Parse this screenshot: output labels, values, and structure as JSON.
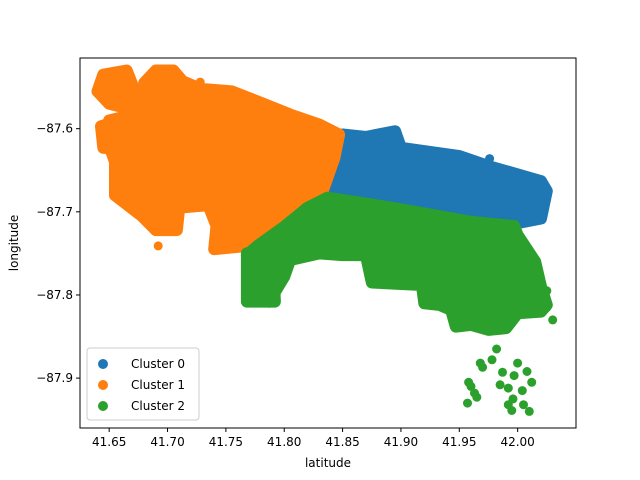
{
  "chart_data": {
    "type": "scatter",
    "title": "",
    "xlabel": "latitude",
    "ylabel": "longitude",
    "xlim": [
      41.625,
      42.05
    ],
    "ylim": [
      -87.96,
      -87.515
    ],
    "xticks": [
      41.65,
      41.7,
      41.75,
      41.8,
      41.85,
      41.9,
      41.95,
      42.0
    ],
    "xtick_labels": [
      "41.65",
      "41.70",
      "41.75",
      "41.80",
      "41.85",
      "41.90",
      "41.95",
      "42.00"
    ],
    "yticks": [
      -87.6,
      -87.7,
      -87.8,
      -87.9
    ],
    "ytick_labels": [
      "−87.6",
      "−87.7",
      "−87.8",
      "−87.9"
    ],
    "legend_position": "lower-left",
    "grid": false,
    "series": [
      {
        "name": "Cluster 0",
        "color": "#1f77b4",
        "regions": [
          {
            "polygon": [
              [
                41.85,
                -87.607
              ],
              [
                41.87,
                -87.61
              ],
              [
                41.895,
                -87.603
              ],
              [
                41.9,
                -87.623
              ],
              [
                41.95,
                -87.633
              ],
              [
                41.975,
                -87.645
              ],
              [
                42.0,
                -87.655
              ],
              [
                42.02,
                -87.663
              ],
              [
                42.025,
                -87.675
              ],
              [
                42.02,
                -87.708
              ],
              [
                41.995,
                -87.715
              ],
              [
                41.96,
                -87.712
              ],
              [
                41.93,
                -87.705
              ],
              [
                41.9,
                -87.697
              ],
              [
                41.87,
                -87.69
              ],
              [
                41.84,
                -87.683
              ],
              [
                41.843,
                -87.66
              ]
            ]
          }
        ],
        "points": [
          [
            41.896,
            -87.603
          ],
          [
            41.976,
            -87.636
          ],
          [
            42.02,
            -87.705
          ],
          [
            41.845,
            -87.65
          ]
        ]
      },
      {
        "name": "Cluster 1",
        "color": "#ff7f0e",
        "regions": [
          {
            "polygon": [
              [
                41.69,
                -87.53
              ],
              [
                41.705,
                -87.53
              ],
              [
                41.713,
                -87.543
              ],
              [
                41.728,
                -87.552
              ],
              [
                41.755,
                -87.555
              ],
              [
                41.782,
                -87.57
              ],
              [
                41.805,
                -87.583
              ],
              [
                41.83,
                -87.595
              ],
              [
                41.847,
                -87.607
              ],
              [
                41.843,
                -87.635
              ],
              [
                41.833,
                -87.675
              ],
              [
                41.812,
                -87.705
              ],
              [
                41.775,
                -87.74
              ],
              [
                41.74,
                -87.745
              ],
              [
                41.742,
                -87.717
              ],
              [
                41.735,
                -87.692
              ],
              [
                41.71,
                -87.695
              ],
              [
                41.708,
                -87.722
              ],
              [
                41.69,
                -87.722
              ],
              [
                41.678,
                -87.705
              ],
              [
                41.655,
                -87.68
              ],
              [
                41.655,
                -87.64
              ],
              [
                41.648,
                -87.612
              ],
              [
                41.65,
                -87.59
              ],
              [
                41.68,
                -87.58
              ],
              [
                41.68,
                -87.545
              ]
            ]
          },
          {
            "polygon": [
              [
                41.645,
                -87.535
              ],
              [
                41.665,
                -87.53
              ],
              [
                41.672,
                -87.555
              ],
              [
                41.67,
                -87.577
              ],
              [
                41.65,
                -87.57
              ],
              [
                41.64,
                -87.555
              ]
            ]
          },
          {
            "polygon": [
              [
                41.643,
                -87.597
              ],
              [
                41.66,
                -87.59
              ],
              [
                41.662,
                -87.625
              ],
              [
                41.645,
                -87.623
              ]
            ]
          }
        ],
        "points": [
          [
            41.692,
            -87.741
          ],
          [
            41.646,
            -87.542
          ],
          [
            41.66,
            -87.531
          ],
          [
            41.677,
            -87.555
          ],
          [
            41.668,
            -87.6
          ],
          [
            41.7,
            -87.56
          ],
          [
            41.643,
            -87.612
          ],
          [
            41.728,
            -87.544
          ]
        ]
      },
      {
        "name": "Cluster 2",
        "color": "#2ca02c",
        "regions": [
          {
            "polygon": [
              [
                41.837,
                -87.683
              ],
              [
                41.87,
                -87.69
              ],
              [
                41.9,
                -87.697
              ],
              [
                41.96,
                -87.712
              ],
              [
                41.997,
                -87.717
              ],
              [
                42.0,
                -87.728
              ],
              [
                42.015,
                -87.76
              ],
              [
                42.02,
                -87.79
              ],
              [
                42.025,
                -87.812
              ],
              [
                42.02,
                -87.82
              ],
              [
                42.0,
                -87.822
              ],
              [
                41.99,
                -87.84
              ],
              [
                41.975,
                -87.842
              ],
              [
                41.96,
                -87.836
              ],
              [
                41.947,
                -87.838
              ],
              [
                41.943,
                -87.818
              ],
              [
                41.933,
                -87.812
              ],
              [
                41.92,
                -87.81
              ],
              [
                41.918,
                -87.788
              ],
              [
                41.875,
                -87.785
              ],
              [
                41.87,
                -87.752
              ],
              [
                41.85,
                -87.752
              ],
              [
                41.83,
                -87.75
              ],
              [
                41.805,
                -87.758
              ],
              [
                41.8,
                -87.778
              ],
              [
                41.787,
                -87.808
              ],
              [
                41.77,
                -87.806
              ],
              [
                41.768,
                -87.752
              ],
              [
                41.778,
                -87.74
              ],
              [
                41.8,
                -87.718
              ],
              [
                41.82,
                -87.695
              ]
            ]
          },
          {
            "polygon": [
              [
                41.768,
                -87.75
              ],
              [
                41.79,
                -87.748
              ],
              [
                41.792,
                -87.808
              ],
              [
                41.768,
                -87.808
              ]
            ]
          }
        ],
        "points": [
          [
            41.958,
            -87.905
          ],
          [
            41.963,
            -87.918
          ],
          [
            41.957,
            -87.93
          ],
          [
            41.965,
            -87.923
          ],
          [
            41.97,
            -87.887
          ],
          [
            41.978,
            -87.878
          ],
          [
            41.982,
            -87.865
          ],
          [
            41.987,
            -87.893
          ],
          [
            41.985,
            -87.908
          ],
          [
            41.992,
            -87.912
          ],
          [
            41.997,
            -87.897
          ],
          [
            42.0,
            -87.882
          ],
          [
            42.008,
            -87.892
          ],
          [
            42.012,
            -87.905
          ],
          [
            42.004,
            -87.915
          ],
          [
            41.996,
            -87.925
          ],
          [
            41.992,
            -87.932
          ],
          [
            41.995,
            -87.939
          ],
          [
            42.005,
            -87.932
          ],
          [
            42.01,
            -87.94
          ],
          [
            41.968,
            -87.882
          ],
          [
            41.96,
            -87.91
          ],
          [
            42.03,
            -87.83
          ],
          [
            42.025,
            -87.815
          ],
          [
            42.025,
            -87.795
          ],
          [
            42.018,
            -87.772
          ]
        ]
      }
    ]
  }
}
